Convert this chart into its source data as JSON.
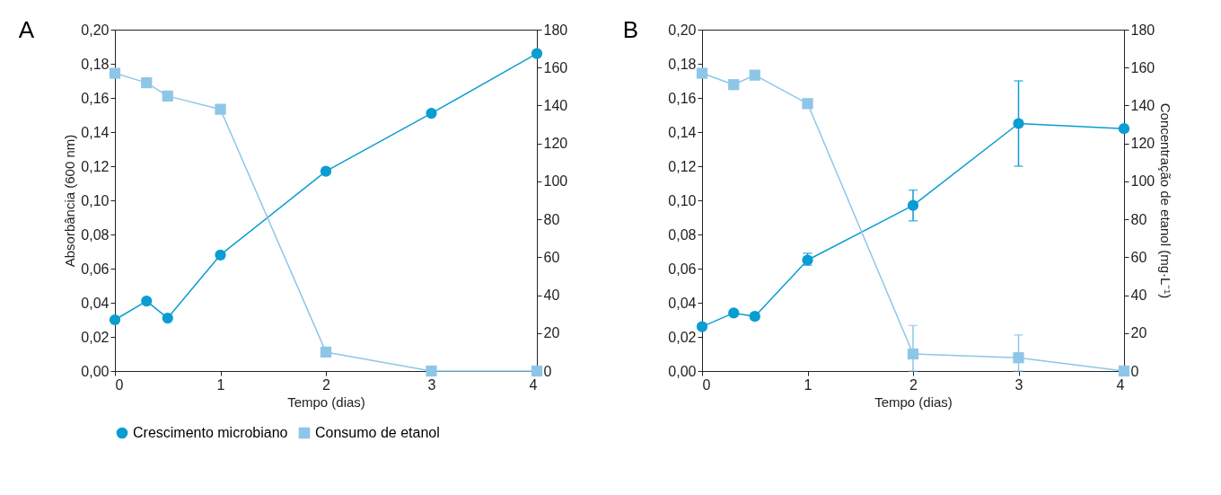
{
  "chart_data": [
    {
      "type": "line",
      "title": "A",
      "xlabel": "Tempo (dias)",
      "ylabel": "Absorbância (600 nm)",
      "x": [
        0,
        0.3,
        0.5,
        1,
        2,
        3,
        4
      ],
      "xlim": [
        0,
        4
      ],
      "xticks": [
        0,
        1,
        2,
        3,
        4
      ],
      "ylim": [
        0,
        0.2
      ],
      "yticks": [
        {
          "value": 0,
          "label": "0,00"
        },
        {
          "value": 0.02,
          "label": "0,02"
        },
        {
          "value": 0.04,
          "label": "0,04"
        },
        {
          "value": 0.06,
          "label": "0,06"
        },
        {
          "value": 0.08,
          "label": "0,08"
        },
        {
          "value": 0.1,
          "label": "0,10"
        },
        {
          "value": 0.12,
          "label": "0,12"
        },
        {
          "value": 0.14,
          "label": "0,14"
        },
        {
          "value": 0.16,
          "label": "0,16"
        },
        {
          "value": 0.18,
          "label": "0,18"
        },
        {
          "value": 0.2,
          "label": "0,20"
        }
      ],
      "y2lim": [
        0,
        180
      ],
      "y2ticks": [
        0,
        20,
        40,
        60,
        80,
        100,
        120,
        140,
        160,
        180
      ],
      "grid": false,
      "legend": "bottom",
      "series": [
        {
          "name": "Crescimento microbiano",
          "color": "#0a9dd1",
          "marker": "circle",
          "values": [
            0.03,
            0.041,
            0.031,
            0.068,
            0.117,
            0.151,
            0.186
          ]
        },
        {
          "name": "Consumo de etanol",
          "color": "#8ec6e8",
          "marker": "square",
          "axis": "y2",
          "values": [
            157,
            152,
            145,
            138,
            10,
            0,
            0
          ]
        }
      ]
    },
    {
      "type": "line",
      "title": "B",
      "xlabel": "Tempo (dias)",
      "y2label": "Concentração de etanol (mg·L⁻¹)",
      "x": [
        0,
        0.3,
        0.5,
        1,
        2,
        3,
        4
      ],
      "xlim": [
        0,
        4
      ],
      "xticks": [
        0,
        1,
        2,
        3,
        4
      ],
      "ylim": [
        0,
        0.2
      ],
      "yticks": [
        {
          "value": 0,
          "label": "0,00"
        },
        {
          "value": 0.02,
          "label": "0,02"
        },
        {
          "value": 0.04,
          "label": "0,04"
        },
        {
          "value": 0.06,
          "label": "0,06"
        },
        {
          "value": 0.08,
          "label": "0,08"
        },
        {
          "value": 0.1,
          "label": "0,10"
        },
        {
          "value": 0.12,
          "label": "0,12"
        },
        {
          "value": 0.14,
          "label": "0,14"
        },
        {
          "value": 0.16,
          "label": "0,16"
        },
        {
          "value": 0.18,
          "label": "0,18"
        },
        {
          "value": 0.2,
          "label": "0,20"
        }
      ],
      "y2lim": [
        0,
        180
      ],
      "y2ticks": [
        0,
        20,
        40,
        60,
        80,
        100,
        120,
        140,
        160,
        180
      ],
      "grid": false,
      "legend": "bottom",
      "series": [
        {
          "name": "Crescimento microbiano",
          "color": "#0a9dd1",
          "marker": "circle",
          "values": [
            0.026,
            0.034,
            0.032,
            0.065,
            0.097,
            0.145,
            0.142
          ],
          "errors": [
            null,
            null,
            null,
            [
              0.062,
              0.069
            ],
            [
              0.088,
              0.106
            ],
            [
              0.12,
              0.17
            ],
            null
          ]
        },
        {
          "name": "Consumo de etanol",
          "color": "#8ec6e8",
          "marker": "square",
          "axis": "y2",
          "values": [
            157,
            151,
            156,
            141,
            9,
            7,
            0
          ],
          "errors": [
            null,
            null,
            null,
            null,
            [
              0,
              24
            ],
            [
              0,
              19
            ],
            null
          ]
        }
      ]
    }
  ]
}
